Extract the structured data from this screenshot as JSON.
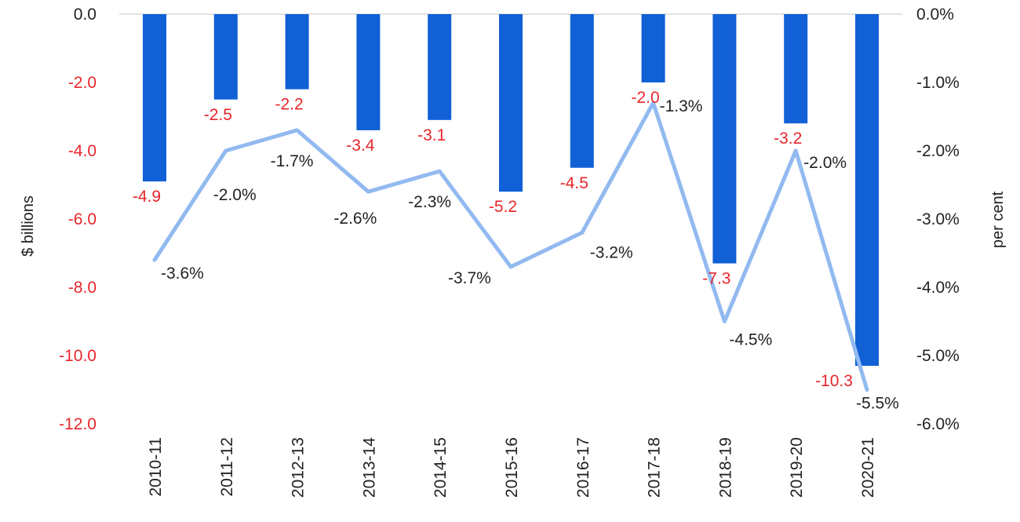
{
  "chart_data": {
    "type": "bar",
    "categories": [
      "2010-11",
      "2011-12",
      "2012-13",
      "2013-14",
      "2014-15",
      "2015-16",
      "2016-17",
      "2017-18",
      "2018-19",
      "2019-20",
      "2020-21"
    ],
    "series": [
      {
        "type": "bar",
        "axis": "left",
        "values": [
          -4.9,
          -2.5,
          -2.2,
          -3.4,
          -3.1,
          -5.2,
          -4.5,
          -2.0,
          -7.3,
          -3.2,
          -10.3
        ],
        "labels": [
          "-4.9",
          "-2.5",
          "-2.2",
          "-3.4",
          "-3.1",
          "-5.2",
          "-4.5",
          "-2.0",
          "-7.3",
          "-3.2",
          "-10.3"
        ],
        "color": "#1160D6",
        "label_color": "#E8262B"
      },
      {
        "type": "line",
        "axis": "right",
        "values": [
          -3.6,
          -2.0,
          -1.7,
          -2.6,
          -2.3,
          -3.7,
          -3.2,
          -1.3,
          -4.5,
          -2.0,
          -5.5
        ],
        "labels": [
          "-3.6%",
          "-2.0%",
          "-1.7%",
          "-2.6%",
          "-2.3%",
          "-3.7%",
          "-3.2%",
          "-1.3%",
          "-4.5%",
          "-2.0%",
          "-5.5%"
        ],
        "color": "#92BAF0"
      }
    ],
    "ylabel_left": "$ billions",
    "ylabel_right": "per cent",
    "ylim_left": [
      -12,
      0
    ],
    "ylim_right": [
      -6,
      0
    ],
    "yticks_left": [
      "0.0",
      "-2.0",
      "-4.0",
      "-6.0",
      "-8.0",
      "-10.0",
      "-12.0"
    ],
    "yticks_right": [
      "0.0%",
      "-1.0%",
      "-2.0%",
      "-3.0%",
      "-4.0%",
      "-5.0%",
      "-6.0%"
    ],
    "left_tick_colors": {
      "zero": "#222222",
      "negative": "#E8262B"
    },
    "grid": false,
    "legend": "none"
  }
}
